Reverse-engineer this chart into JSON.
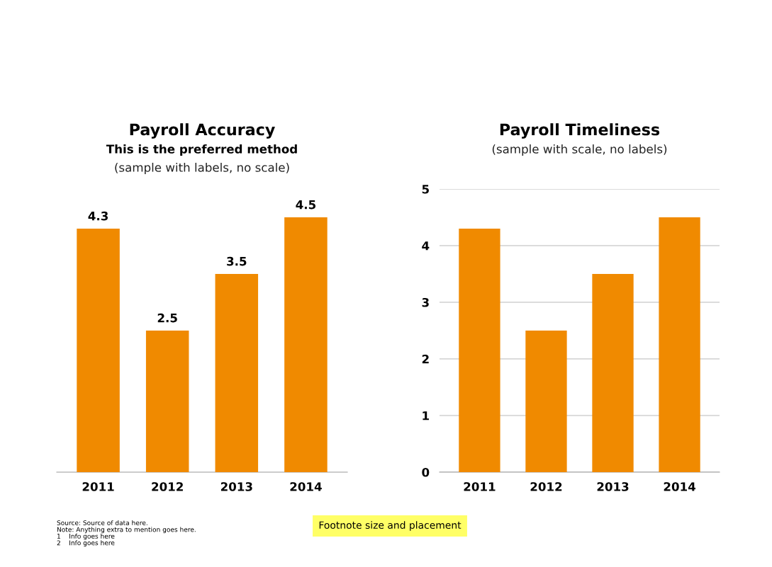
{
  "chart_data": [
    {
      "type": "bar",
      "title": "Payroll Accuracy",
      "subtitle": "This is the preferred method\n(sample with labels, no scale)",
      "categories": [
        "2011",
        "2012",
        "2013",
        "2014"
      ],
      "values": [
        4.3,
        2.5,
        3.5,
        4.5
      ],
      "color": "#f08a00",
      "data_labels": true,
      "tick_labels": "x",
      "grid": false,
      "annotations": [
        "Source: Source of data here.\nNote: Anything extra to mention goes here.\n1    Info goes here\n2    Info goes here",
        "Footnote size and placement"
      ]
    },
    {
      "type": "bar",
      "title": "Payroll Timeliness",
      "subtitle": "(sample with scale, no labels)",
      "categories": [
        "2011",
        "2012",
        "2013",
        "2014"
      ],
      "values": [
        4.3,
        2.5,
        3.5,
        4.5
      ],
      "color": "#f08a00",
      "ylim": [
        0,
        5
      ],
      "yticks": [
        0,
        1,
        2,
        3,
        4,
        5
      ],
      "grid": "y"
    }
  ]
}
